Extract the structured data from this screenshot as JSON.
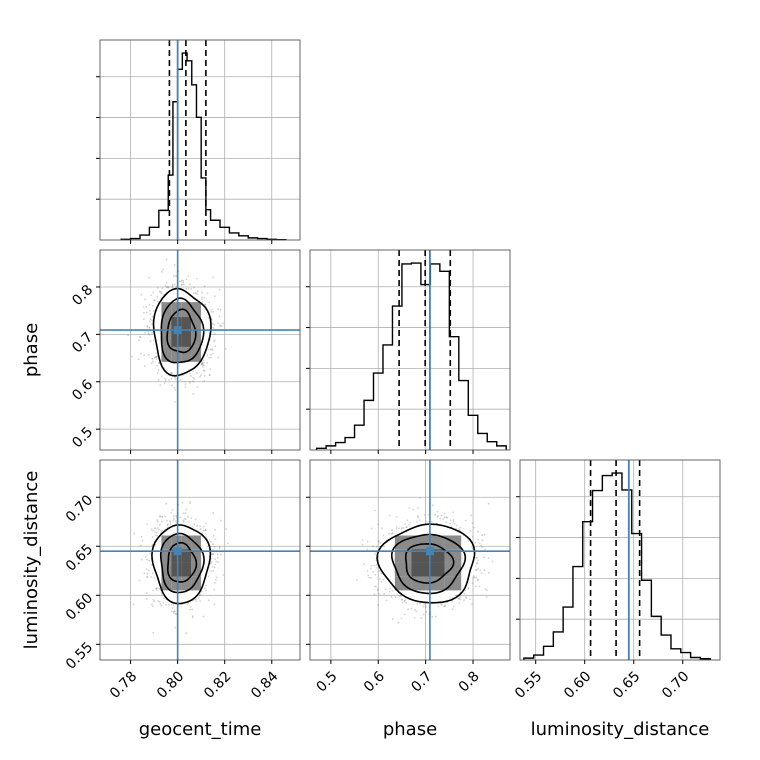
{
  "chart_data": {
    "type": "corner",
    "parameters": [
      "geocent_time",
      "phase",
      "luminosity_distance"
    ],
    "truths": [
      0.8,
      0.709,
      0.645
    ],
    "quantiles": [
      [
        0.7965,
        0.8035,
        0.812
      ],
      [
        0.644,
        0.699,
        0.752
      ],
      [
        0.606,
        0.632,
        0.656
      ]
    ],
    "ranges": [
      [
        0.767,
        0.852
      ],
      [
        0.456,
        0.878
      ],
      [
        0.534,
        0.738
      ]
    ],
    "ticks": [
      [
        "0.78",
        "0.80",
        "0.82",
        "0.84"
      ],
      [
        "0.5",
        "0.6",
        "0.7",
        "0.8"
      ],
      [
        "0.55",
        "0.60",
        "0.65",
        "0.70"
      ]
    ],
    "marginals": [
      {
        "bin_edges": [
          0.776,
          0.78,
          0.784,
          0.788,
          0.792,
          0.796,
          0.798,
          0.8,
          0.802,
          0.804,
          0.806,
          0.808,
          0.81,
          0.812,
          0.814,
          0.818,
          0.822,
          0.826,
          0.83,
          0.834,
          0.838,
          0.842,
          0.846
        ],
        "counts": [
          1,
          2,
          7,
          18,
          42,
          92,
          196,
          242,
          265,
          254,
          220,
          174,
          88,
          43,
          28,
          18,
          10,
          6,
          3,
          2,
          1,
          0.5
        ]
      },
      {
        "bin_edges": [
          0.47,
          0.49,
          0.51,
          0.53,
          0.55,
          0.57,
          0.59,
          0.61,
          0.63,
          0.65,
          0.67,
          0.69,
          0.71,
          0.73,
          0.75,
          0.77,
          0.79,
          0.81,
          0.83,
          0.85,
          0.87
        ],
        "counts": [
          2,
          5,
          9,
          15,
          30,
          60,
          93,
          127,
          174,
          225,
          226,
          200,
          225,
          216,
          137,
          84,
          42,
          20,
          10,
          5
        ]
      },
      {
        "bin_edges": [
          0.538,
          0.548,
          0.558,
          0.568,
          0.578,
          0.588,
          0.598,
          0.608,
          0.618,
          0.628,
          0.638,
          0.648,
          0.658,
          0.668,
          0.678,
          0.688,
          0.698,
          0.708,
          0.718,
          0.728
        ],
        "counts": [
          3,
          8,
          22,
          45,
          85,
          150,
          222,
          272,
          296,
          300,
          273,
          203,
          128,
          70,
          40,
          18,
          12,
          4,
          2
        ]
      }
    ],
    "pairs": [
      {
        "x_param": "geocent_time",
        "y_param": "phase",
        "center": [
          0.8015,
          0.705
        ],
        "sigma": [
          0.006,
          0.045
        ]
      },
      {
        "x_param": "geocent_time",
        "y_param": "luminosity_distance",
        "center": [
          0.8015,
          0.633
        ],
        "sigma": [
          0.006,
          0.02
        ]
      },
      {
        "x_param": "phase",
        "y_param": "luminosity_distance",
        "center": [
          0.705,
          0.633
        ],
        "sigma": [
          0.05,
          0.02
        ]
      }
    ],
    "contour_sigma_levels": [
      0.5,
      1.0,
      1.5,
      2.0
    ],
    "grid": true,
    "colors": {
      "truth": "#4682b4",
      "hist": "#000000",
      "points": "#808080",
      "grid": "#b0b0b0"
    }
  }
}
